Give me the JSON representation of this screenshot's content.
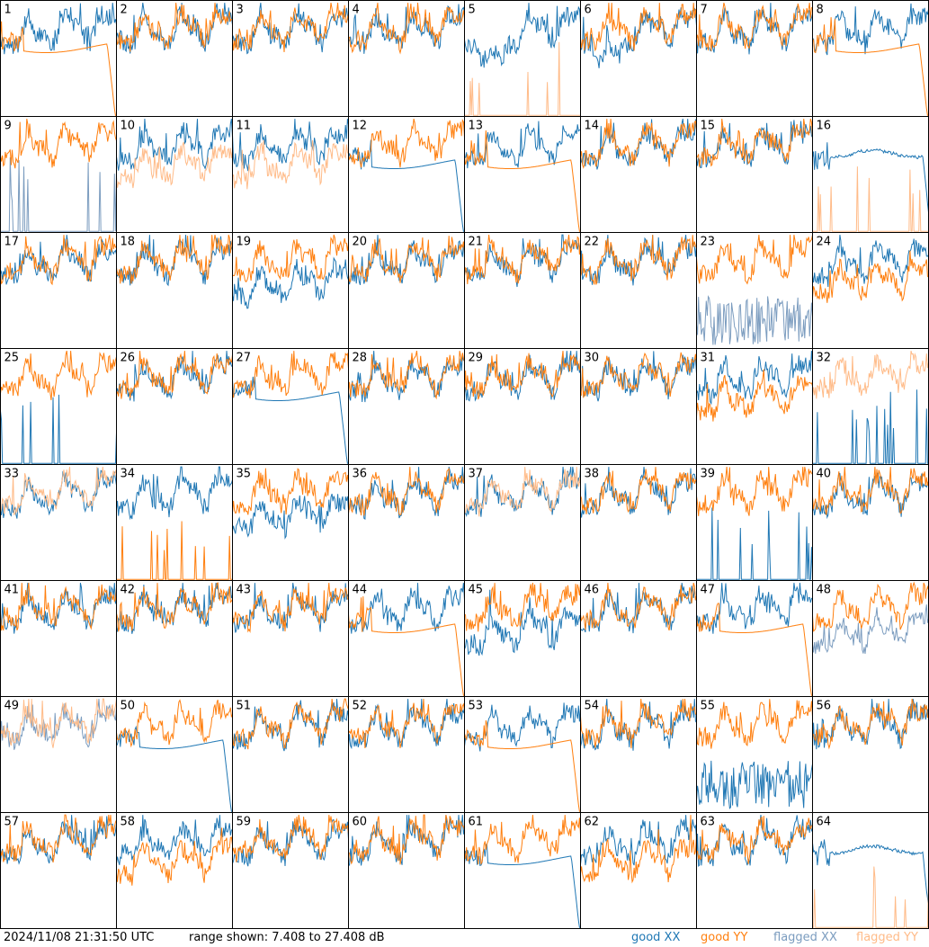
{
  "footer": {
    "timestamp": "2024/11/08 21:31:50 UTC",
    "range_text": "range shown: 7.408 to 27.408 dB"
  },
  "legend": {
    "good_xx": "good XX",
    "good_yy": "good YY",
    "flagged_xx": "flagged XX",
    "flagged_yy": "flagged YY"
  },
  "colors": {
    "good_xx": "#1f77b4",
    "good_yy": "#ff7f0e",
    "flagged_xx": "#7b9cbf",
    "flagged_yy": "#ffbb88"
  },
  "chart_data": {
    "type": "line",
    "grid": "8x8 small multiples",
    "ylim": [
      7.408,
      27.408
    ],
    "y_unit": "dB",
    "x": "frequency channel (unlabeled)",
    "panels": [
      {
        "id": "1",
        "xx": "good",
        "yy": "good",
        "xx_shape": "normal",
        "yy_shape": "sag"
      },
      {
        "id": "2",
        "xx": "good",
        "yy": "good",
        "xx_shape": "normal",
        "yy_shape": "normal"
      },
      {
        "id": "3",
        "xx": "good",
        "yy": "good",
        "xx_shape": "normal",
        "yy_shape": "normal"
      },
      {
        "id": "4",
        "xx": "good",
        "yy": "good",
        "xx_shape": "normal",
        "yy_shape": "normal"
      },
      {
        "id": "5",
        "xx": "good",
        "yy": "flagged",
        "xx_shape": "deep",
        "yy_shape": "spikes"
      },
      {
        "id": "6",
        "xx": "good",
        "yy": "good",
        "xx_shape": "deep",
        "yy_shape": "normal"
      },
      {
        "id": "7",
        "xx": "good",
        "yy": "good",
        "xx_shape": "normal",
        "yy_shape": "normal"
      },
      {
        "id": "8",
        "xx": "good",
        "yy": "good",
        "xx_shape": "normal",
        "yy_shape": "sag"
      },
      {
        "id": "9",
        "xx": "flagged",
        "yy": "good",
        "xx_shape": "spikes",
        "yy_shape": "normal"
      },
      {
        "id": "10",
        "xx": "good",
        "yy": "flagged",
        "xx_shape": "normal",
        "yy_shape": "low"
      },
      {
        "id": "11",
        "xx": "good",
        "yy": "flagged",
        "xx_shape": "normal",
        "yy_shape": "low"
      },
      {
        "id": "12",
        "xx": "good",
        "yy": "good",
        "xx_shape": "sag",
        "yy_shape": "normal"
      },
      {
        "id": "13",
        "xx": "good",
        "yy": "good",
        "xx_shape": "normal",
        "yy_shape": "sag"
      },
      {
        "id": "14",
        "xx": "good",
        "yy": "good",
        "xx_shape": "normal",
        "yy_shape": "normal"
      },
      {
        "id": "15",
        "xx": "good",
        "yy": "good",
        "xx_shape": "normal",
        "yy_shape": "normal"
      },
      {
        "id": "16",
        "xx": "good",
        "yy": "flagged",
        "xx_shape": "flat",
        "yy_shape": "spikes"
      },
      {
        "id": "17",
        "xx": "good",
        "yy": "good",
        "xx_shape": "normal",
        "yy_shape": "normal"
      },
      {
        "id": "18",
        "xx": "good",
        "yy": "good",
        "xx_shape": "normal",
        "yy_shape": "normal"
      },
      {
        "id": "19",
        "xx": "good",
        "yy": "good",
        "xx_shape": "low",
        "yy_shape": "normal"
      },
      {
        "id": "20",
        "xx": "good",
        "yy": "good",
        "xx_shape": "normal",
        "yy_shape": "normal"
      },
      {
        "id": "21",
        "xx": "good",
        "yy": "good",
        "xx_shape": "normal",
        "yy_shape": "normal"
      },
      {
        "id": "22",
        "xx": "good",
        "yy": "good",
        "xx_shape": "normal",
        "yy_shape": "normal"
      },
      {
        "id": "23",
        "xx": "flagged",
        "yy": "good",
        "xx_shape": "noise",
        "yy_shape": "normal"
      },
      {
        "id": "24",
        "xx": "good",
        "yy": "good",
        "xx_shape": "normal",
        "yy_shape": "low"
      },
      {
        "id": "25",
        "xx": "good",
        "yy": "good",
        "xx_shape": "spikes",
        "yy_shape": "normal"
      },
      {
        "id": "26",
        "xx": "good",
        "yy": "good",
        "xx_shape": "normal",
        "yy_shape": "normal"
      },
      {
        "id": "27",
        "xx": "good",
        "yy": "good",
        "xx_shape": "sag",
        "yy_shape": "normal"
      },
      {
        "id": "28",
        "xx": "good",
        "yy": "good",
        "xx_shape": "normal",
        "yy_shape": "normal"
      },
      {
        "id": "29",
        "xx": "good",
        "yy": "good",
        "xx_shape": "normal",
        "yy_shape": "normal"
      },
      {
        "id": "30",
        "xx": "good",
        "yy": "good",
        "xx_shape": "normal",
        "yy_shape": "normal"
      },
      {
        "id": "31",
        "xx": "good",
        "yy": "good",
        "xx_shape": "normal",
        "yy_shape": "low"
      },
      {
        "id": "32",
        "xx": "good",
        "yy": "flagged",
        "xx_shape": "spikes",
        "yy_shape": "normal"
      },
      {
        "id": "33",
        "xx": "good",
        "yy": "flagged",
        "xx_shape": "normal",
        "yy_shape": "normal"
      },
      {
        "id": "34",
        "xx": "good",
        "yy": "good",
        "xx_shape": "normal",
        "yy_shape": "spikes"
      },
      {
        "id": "35",
        "xx": "good",
        "yy": "good",
        "xx_shape": "low",
        "yy_shape": "normal"
      },
      {
        "id": "36",
        "xx": "good",
        "yy": "good",
        "xx_shape": "normal",
        "yy_shape": "normal"
      },
      {
        "id": "37",
        "xx": "good",
        "yy": "flagged",
        "xx_shape": "normal",
        "yy_shape": "normal"
      },
      {
        "id": "38",
        "xx": "good",
        "yy": "good",
        "xx_shape": "normal",
        "yy_shape": "normal"
      },
      {
        "id": "39",
        "xx": "good",
        "yy": "good",
        "xx_shape": "spikes",
        "yy_shape": "normal"
      },
      {
        "id": "40",
        "xx": "good",
        "yy": "good",
        "xx_shape": "normal",
        "yy_shape": "normal"
      },
      {
        "id": "41",
        "xx": "good",
        "yy": "good",
        "xx_shape": "normal",
        "yy_shape": "normal"
      },
      {
        "id": "42",
        "xx": "good",
        "yy": "good",
        "xx_shape": "normal",
        "yy_shape": "normal"
      },
      {
        "id": "43",
        "xx": "good",
        "yy": "good",
        "xx_shape": "normal",
        "yy_shape": "normal"
      },
      {
        "id": "44",
        "xx": "good",
        "yy": "good",
        "xx_shape": "normal",
        "yy_shape": "sag"
      },
      {
        "id": "45",
        "xx": "good",
        "yy": "good",
        "xx_shape": "low",
        "yy_shape": "normal"
      },
      {
        "id": "46",
        "xx": "good",
        "yy": "good",
        "xx_shape": "normal",
        "yy_shape": "normal"
      },
      {
        "id": "47",
        "xx": "good",
        "yy": "good",
        "xx_shape": "normal",
        "yy_shape": "sag"
      },
      {
        "id": "48",
        "xx": "flagged",
        "yy": "good",
        "xx_shape": "low",
        "yy_shape": "normal"
      },
      {
        "id": "49",
        "xx": "flagged",
        "yy": "flagged",
        "xx_shape": "normal",
        "yy_shape": "normal"
      },
      {
        "id": "50",
        "xx": "good",
        "yy": "good",
        "xx_shape": "sag",
        "yy_shape": "normal"
      },
      {
        "id": "51",
        "xx": "good",
        "yy": "good",
        "xx_shape": "normal",
        "yy_shape": "normal"
      },
      {
        "id": "52",
        "xx": "good",
        "yy": "good",
        "xx_shape": "normal",
        "yy_shape": "normal"
      },
      {
        "id": "53",
        "xx": "good",
        "yy": "good",
        "xx_shape": "normal",
        "yy_shape": "sag"
      },
      {
        "id": "54",
        "xx": "good",
        "yy": "good",
        "xx_shape": "normal",
        "yy_shape": "normal"
      },
      {
        "id": "55",
        "xx": "good",
        "yy": "good",
        "xx_shape": "noise",
        "yy_shape": "normal"
      },
      {
        "id": "56",
        "xx": "good",
        "yy": "good",
        "xx_shape": "normal",
        "yy_shape": "normal"
      },
      {
        "id": "57",
        "xx": "good",
        "yy": "good",
        "xx_shape": "normal",
        "yy_shape": "normal"
      },
      {
        "id": "58",
        "xx": "good",
        "yy": "good",
        "xx_shape": "normal",
        "yy_shape": "low"
      },
      {
        "id": "59",
        "xx": "good",
        "yy": "good",
        "xx_shape": "normal",
        "yy_shape": "normal"
      },
      {
        "id": "60",
        "xx": "good",
        "yy": "good",
        "xx_shape": "normal",
        "yy_shape": "normal"
      },
      {
        "id": "61",
        "xx": "good",
        "yy": "good",
        "xx_shape": "sag",
        "yy_shape": "normal"
      },
      {
        "id": "62",
        "xx": "good",
        "yy": "good",
        "xx_shape": "normal",
        "yy_shape": "low"
      },
      {
        "id": "63",
        "xx": "good",
        "yy": "good",
        "xx_shape": "normal",
        "yy_shape": "normal"
      },
      {
        "id": "64",
        "xx": "good",
        "yy": "flagged",
        "xx_shape": "flat",
        "yy_shape": "spikes"
      }
    ]
  }
}
